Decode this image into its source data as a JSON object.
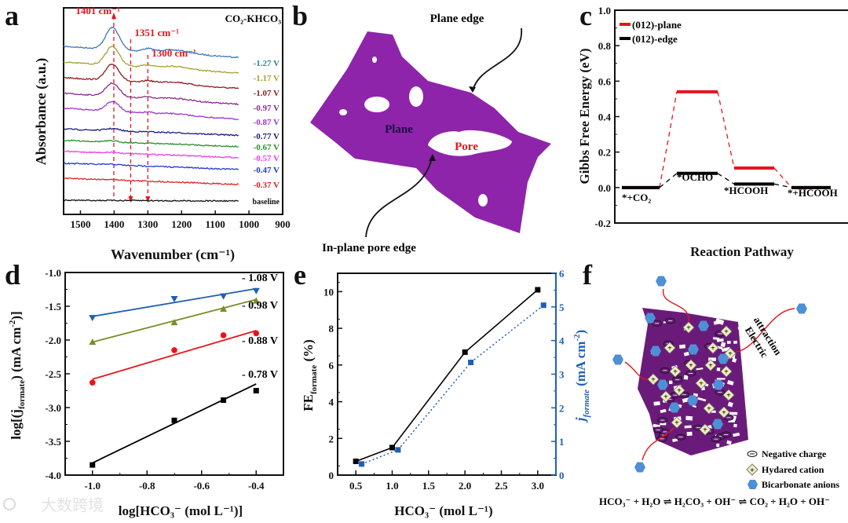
{
  "panel_labels": [
    "a",
    "b",
    "c",
    "d",
    "e",
    "f"
  ],
  "watermark": "大数跨境",
  "chart_data": [
    {
      "id": "a",
      "type": "line",
      "title": "CO₂-KHCO₃",
      "xlabel": "Wavenumber (cm⁻¹)",
      "ylabel": "Absorbance (a.u.)",
      "xlim": [
        1550,
        900
      ],
      "xticks": [
        "1500",
        "1400",
        "1300",
        "1200",
        "1100",
        "1000",
        "900"
      ],
      "annotations": [
        "1401 cm⁻¹",
        "1351 cm⁻¹",
        "1300 cm⁻¹"
      ],
      "annotation_positions_cm1": [
        1401,
        1351,
        1300
      ],
      "series": [
        {
          "name": "-1.27 V",
          "color": "#3b78b8",
          "label_color": "#2a8a8a",
          "relative_peak_intensity_1401": 1.0
        },
        {
          "name": "-1.17 V",
          "color": "#a3a332",
          "label_color": "#a3a332",
          "relative_peak_intensity_1401": 0.85
        },
        {
          "name": "-1.07 V",
          "color": "#8b1c1c",
          "label_color": "#8b1c1c",
          "relative_peak_intensity_1401": 0.75
        },
        {
          "name": "-0.97 V",
          "color": "#8a2c8a",
          "label_color": "#8a2c8a",
          "relative_peak_intensity_1401": 0.6
        },
        {
          "name": "-0.87 V",
          "color": "#9b35d6",
          "label_color": "#9b35d6",
          "relative_peak_intensity_1401": 0.45
        },
        {
          "name": "-0.77 V",
          "color": "#1c1c80",
          "label_color": "#1c1c80",
          "relative_peak_intensity_1401": 0.1
        },
        {
          "name": "-0.67 V",
          "color": "#2a8f2a",
          "label_color": "#2a8f2a",
          "relative_peak_intensity_1401": 0.05
        },
        {
          "name": "-0.57 V",
          "color": "#ee3cee",
          "label_color": "#ee3cee",
          "relative_peak_intensity_1401": 0.04
        },
        {
          "name": "-0.47 V",
          "color": "#2236d8",
          "label_color": "#2236d8",
          "relative_peak_intensity_1401": 0.03
        },
        {
          "name": "-0.37 V",
          "color": "#dd2222",
          "label_color": "#dd2222",
          "relative_peak_intensity_1401": 0.02
        },
        {
          "name": "baseline",
          "color": "#111111",
          "label_color": "#111111",
          "relative_peak_intensity_1401": 0.0
        }
      ]
    },
    {
      "id": "c",
      "type": "line",
      "xlabel": "Reaction Pathway",
      "ylabel": "Gibbs Free Energy (eV)",
      "ylim": [
        -0.2,
        1.0
      ],
      "yticks": [
        "-0.2",
        "0.0",
        "0.2",
        "0.4",
        "0.6",
        "0.8",
        "1.0"
      ],
      "categories": [
        "*+CO₂",
        "*OCHO",
        "*HCOOH",
        "*+HCOOH"
      ],
      "series": [
        {
          "name": "(012)-plane",
          "color": "#e8141b",
          "values": [
            0.0,
            0.54,
            0.11,
            0.0
          ]
        },
        {
          "name": "(012)-edge",
          "color": "#000000",
          "values": [
            0.0,
            0.08,
            0.02,
            0.0
          ]
        }
      ],
      "legend": "top-left"
    },
    {
      "id": "d",
      "type": "scatter",
      "xlabel": "log[HCO₃⁻ (mol L⁻¹)]",
      "ylabel_parts": [
        "log[(j",
        "formate",
        ") (mA cm",
        "-2",
        ")]"
      ],
      "xlim": [
        -1.1,
        -0.3
      ],
      "ylim": [
        -4.0,
        -1.0
      ],
      "xticks": [
        "-1.0",
        "-0.8",
        "-0.6",
        "-0.4"
      ],
      "yticks": [
        "-1.0",
        "-1.5",
        "-2.0",
        "-2.5",
        "-3.0",
        "-3.5",
        "-4.0"
      ],
      "x": [
        -1.0,
        -0.7,
        -0.52,
        -0.4
      ],
      "series": [
        {
          "name": "- 1.08 V",
          "color": "#1f5fb4",
          "marker": "triangle-down",
          "values": [
            -1.67,
            -1.39,
            -1.35,
            -1.27
          ],
          "fit": [
            -1.65,
            -1.24
          ]
        },
        {
          "name": "- 0.98 V",
          "color": "#7f8a2a",
          "marker": "triangle-up",
          "values": [
            -2.03,
            -1.74,
            -1.54,
            -1.42
          ],
          "fit": [
            -2.03,
            -1.4
          ]
        },
        {
          "name": "- 0.88 V",
          "color": "#e8141b",
          "marker": "circle",
          "values": [
            -2.63,
            -2.15,
            -1.93,
            -1.9
          ],
          "fit": [
            -2.58,
            -1.86
          ]
        },
        {
          "name": "- 0.78 V",
          "color": "#000000",
          "marker": "square",
          "values": [
            -3.85,
            -3.19,
            -2.89,
            -2.75
          ],
          "fit": [
            -3.82,
            -2.65
          ]
        }
      ]
    },
    {
      "id": "e",
      "type": "line",
      "xlabel": "HCO₃⁻ (mol L⁻¹)",
      "ylabel_parts": [
        "FE",
        "formate",
        " (%)"
      ],
      "y2label_parts": [
        "j",
        "formate",
        " (mA cm",
        "-2",
        ")"
      ],
      "xlim": [
        0.25,
        3.25
      ],
      "ylim": [
        0,
        11
      ],
      "y2lim": [
        0,
        6
      ],
      "xticks": [
        "0.5",
        "1.0",
        "1.5",
        "2.0",
        "2.5",
        "3.0"
      ],
      "yticks": [
        "0",
        "2",
        "4",
        "6",
        "8",
        "10"
      ],
      "y2ticks": [
        "0",
        "1",
        "2",
        "3",
        "4",
        "5",
        "6"
      ],
      "series": [
        {
          "name": "FE formate",
          "axis": "left",
          "color": "#000000",
          "x": [
            0.5,
            1.0,
            2.0,
            3.0
          ],
          "values": [
            0.75,
            1.5,
            6.7,
            10.1
          ]
        },
        {
          "name": "j formate",
          "axis": "right",
          "color": "#1f5fb4",
          "x": [
            0.58,
            1.08,
            2.08,
            3.08
          ],
          "values": [
            0.33,
            0.75,
            3.35,
            5.05
          ]
        }
      ]
    }
  ],
  "diagram_b": {
    "plane_edge": "Plane edge",
    "plane": "Plane",
    "pore": "Pore",
    "in_plane_pore_edge": "In-plane pore edge",
    "colors": {
      "sheet": "#8e24aa",
      "pore_text": "#e8141b",
      "plane_text": "#1a0a40"
    }
  },
  "diagram_f": {
    "electric_attraction": [
      "Electric",
      "attraction"
    ],
    "legend": [
      "Negative charge",
      "Hydared cation",
      "Bicarbonate anions"
    ],
    "equation": "HCO₃⁻ + H₂O ⇌ H₂CO₃ + OH⁻ ⇌ CO₂ + H₂O + OH⁻",
    "colors": {
      "mesh": "#6a1b7a",
      "cation": "#f3eec0",
      "anion": "#4f8fd6",
      "arrow": "#e8141b"
    }
  }
}
